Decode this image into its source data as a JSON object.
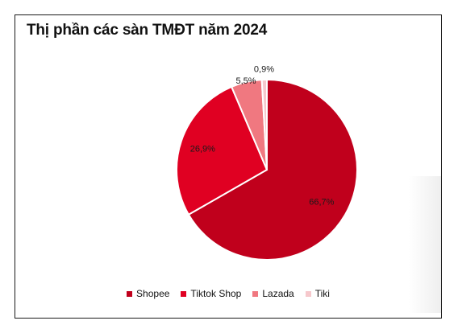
{
  "chart_data": {
    "type": "pie",
    "title": "Thị phần các sàn TMĐT năm 2024",
    "categories": [
      "Shopee",
      "Tiktok Shop",
      "Lazada",
      "Tiki"
    ],
    "values": [
      66.7,
      26.9,
      5.5,
      0.9
    ],
    "labels": [
      "66,7%",
      "26,9%",
      "5,5%",
      "0,9%"
    ],
    "colors": [
      "#c0001c",
      "#e00022",
      "#f07880",
      "#f6c8cc"
    ],
    "legend_position": "bottom"
  }
}
